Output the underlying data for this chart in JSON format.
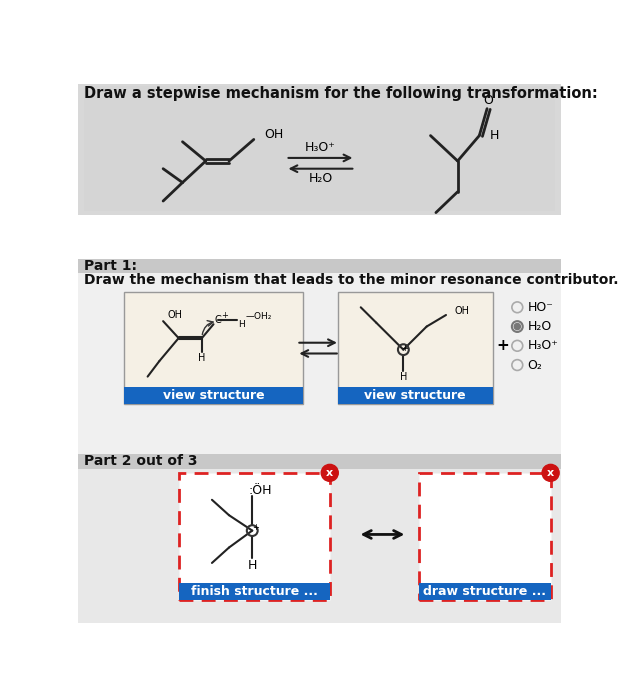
{
  "bg_top": "#d8d8d8",
  "bg_mid": "#e0e0e0",
  "bg_part2": "#e0e0e0",
  "white": "#ffffff",
  "cream": "#f5f0e5",
  "title_text": "Draw a stepwise mechanism for the following transformation:",
  "part1_text": "Part 1:",
  "part1_sub_text": "Draw the mechanism that leads to the minor resonance contributor.",
  "part2_text": "Part 2 out of 3",
  "arrow_label_top": "H₃O⁺",
  "arrow_label_bottom": "H₂O",
  "radio_options": [
    "HO⁻",
    "H₂O",
    "H₃O⁺",
    "O₂"
  ],
  "radio_selected": 1,
  "blue_btn_color": "#1565c0",
  "btn1_text": "view structure",
  "btn2_text": "view structure",
  "btn3_text": "finish structure ...",
  "btn4_text": "draw structure ...",
  "red_border": "#dd2222",
  "gray_divider": "#c0c0c0",
  "plus_text": "+"
}
